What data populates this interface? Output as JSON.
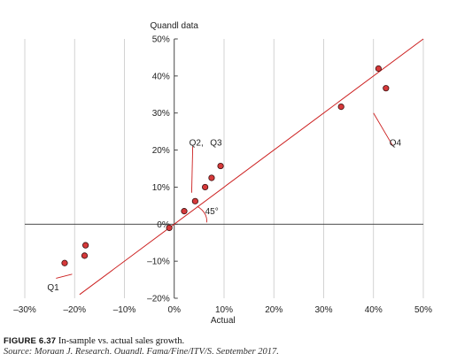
{
  "chart_data": {
    "type": "scatter",
    "title": "",
    "xlabel": "Actual",
    "ylabel": "Quandl data",
    "xlim": [
      -0.3,
      0.5
    ],
    "ylim": [
      -0.2,
      0.5
    ],
    "x_ticks": [
      -0.3,
      -0.2,
      -0.1,
      0,
      0.1,
      0.2,
      0.3,
      0.4,
      0.5
    ],
    "x_tick_labels": [
      "–30%",
      "–20%",
      "–10%",
      "0%",
      "10%",
      "20%",
      "30%",
      "40%",
      "50%"
    ],
    "y_ticks": [
      -0.2,
      -0.1,
      0,
      0.1,
      0.2,
      0.3,
      0.4,
      0.5
    ],
    "y_tick_labels": [
      "–20%",
      "–10%",
      "0%",
      "10%",
      "20%",
      "30%",
      "40%",
      "50%"
    ],
    "grid": "vertical",
    "series": [
      {
        "points": [
          {
            "x": -0.22,
            "y": -0.105
          },
          {
            "x": -0.18,
            "y": -0.085
          },
          {
            "x": -0.178,
            "y": -0.057
          },
          {
            "x": -0.01,
            "y": -0.01
          },
          {
            "x": 0.02,
            "y": 0.035
          },
          {
            "x": 0.042,
            "y": 0.062
          },
          {
            "x": 0.062,
            "y": 0.1
          },
          {
            "x": 0.075,
            "y": 0.125
          },
          {
            "x": 0.093,
            "y": 0.157
          },
          {
            "x": 0.335,
            "y": 0.317
          },
          {
            "x": 0.41,
            "y": 0.42
          },
          {
            "x": 0.425,
            "y": 0.367
          }
        ],
        "color": "#d6393a"
      }
    ],
    "reference_line": {
      "label": "45°",
      "from": [
        -0.19,
        -0.19
      ],
      "to": [
        0.5,
        0.5
      ],
      "color": "#cc1f1f"
    },
    "annotations": [
      {
        "text": "Q1",
        "x": -0.255,
        "y": -0.17,
        "pointer_to": [
          -0.205,
          -0.135
        ]
      },
      {
        "text": "Q2,",
        "x": 0.03,
        "y": 0.22,
        "pointer_to": [
          0.035,
          0.085
        ]
      },
      {
        "text": "Q3",
        "x": 0.072,
        "y": 0.22
      },
      {
        "text": "Q4",
        "x": 0.432,
        "y": 0.22,
        "pointer_to": [
          0.4,
          0.3
        ]
      },
      {
        "text": "45°",
        "x": 0.062,
        "y": 0.035
      }
    ]
  },
  "caption": {
    "figure_number": "FIGURE 6.37",
    "text": "In-sample vs. actual sales growth.",
    "source": "Source: Morgan J. Research, Quandl. Fama/Fine/ITV/S, September 2017."
  }
}
